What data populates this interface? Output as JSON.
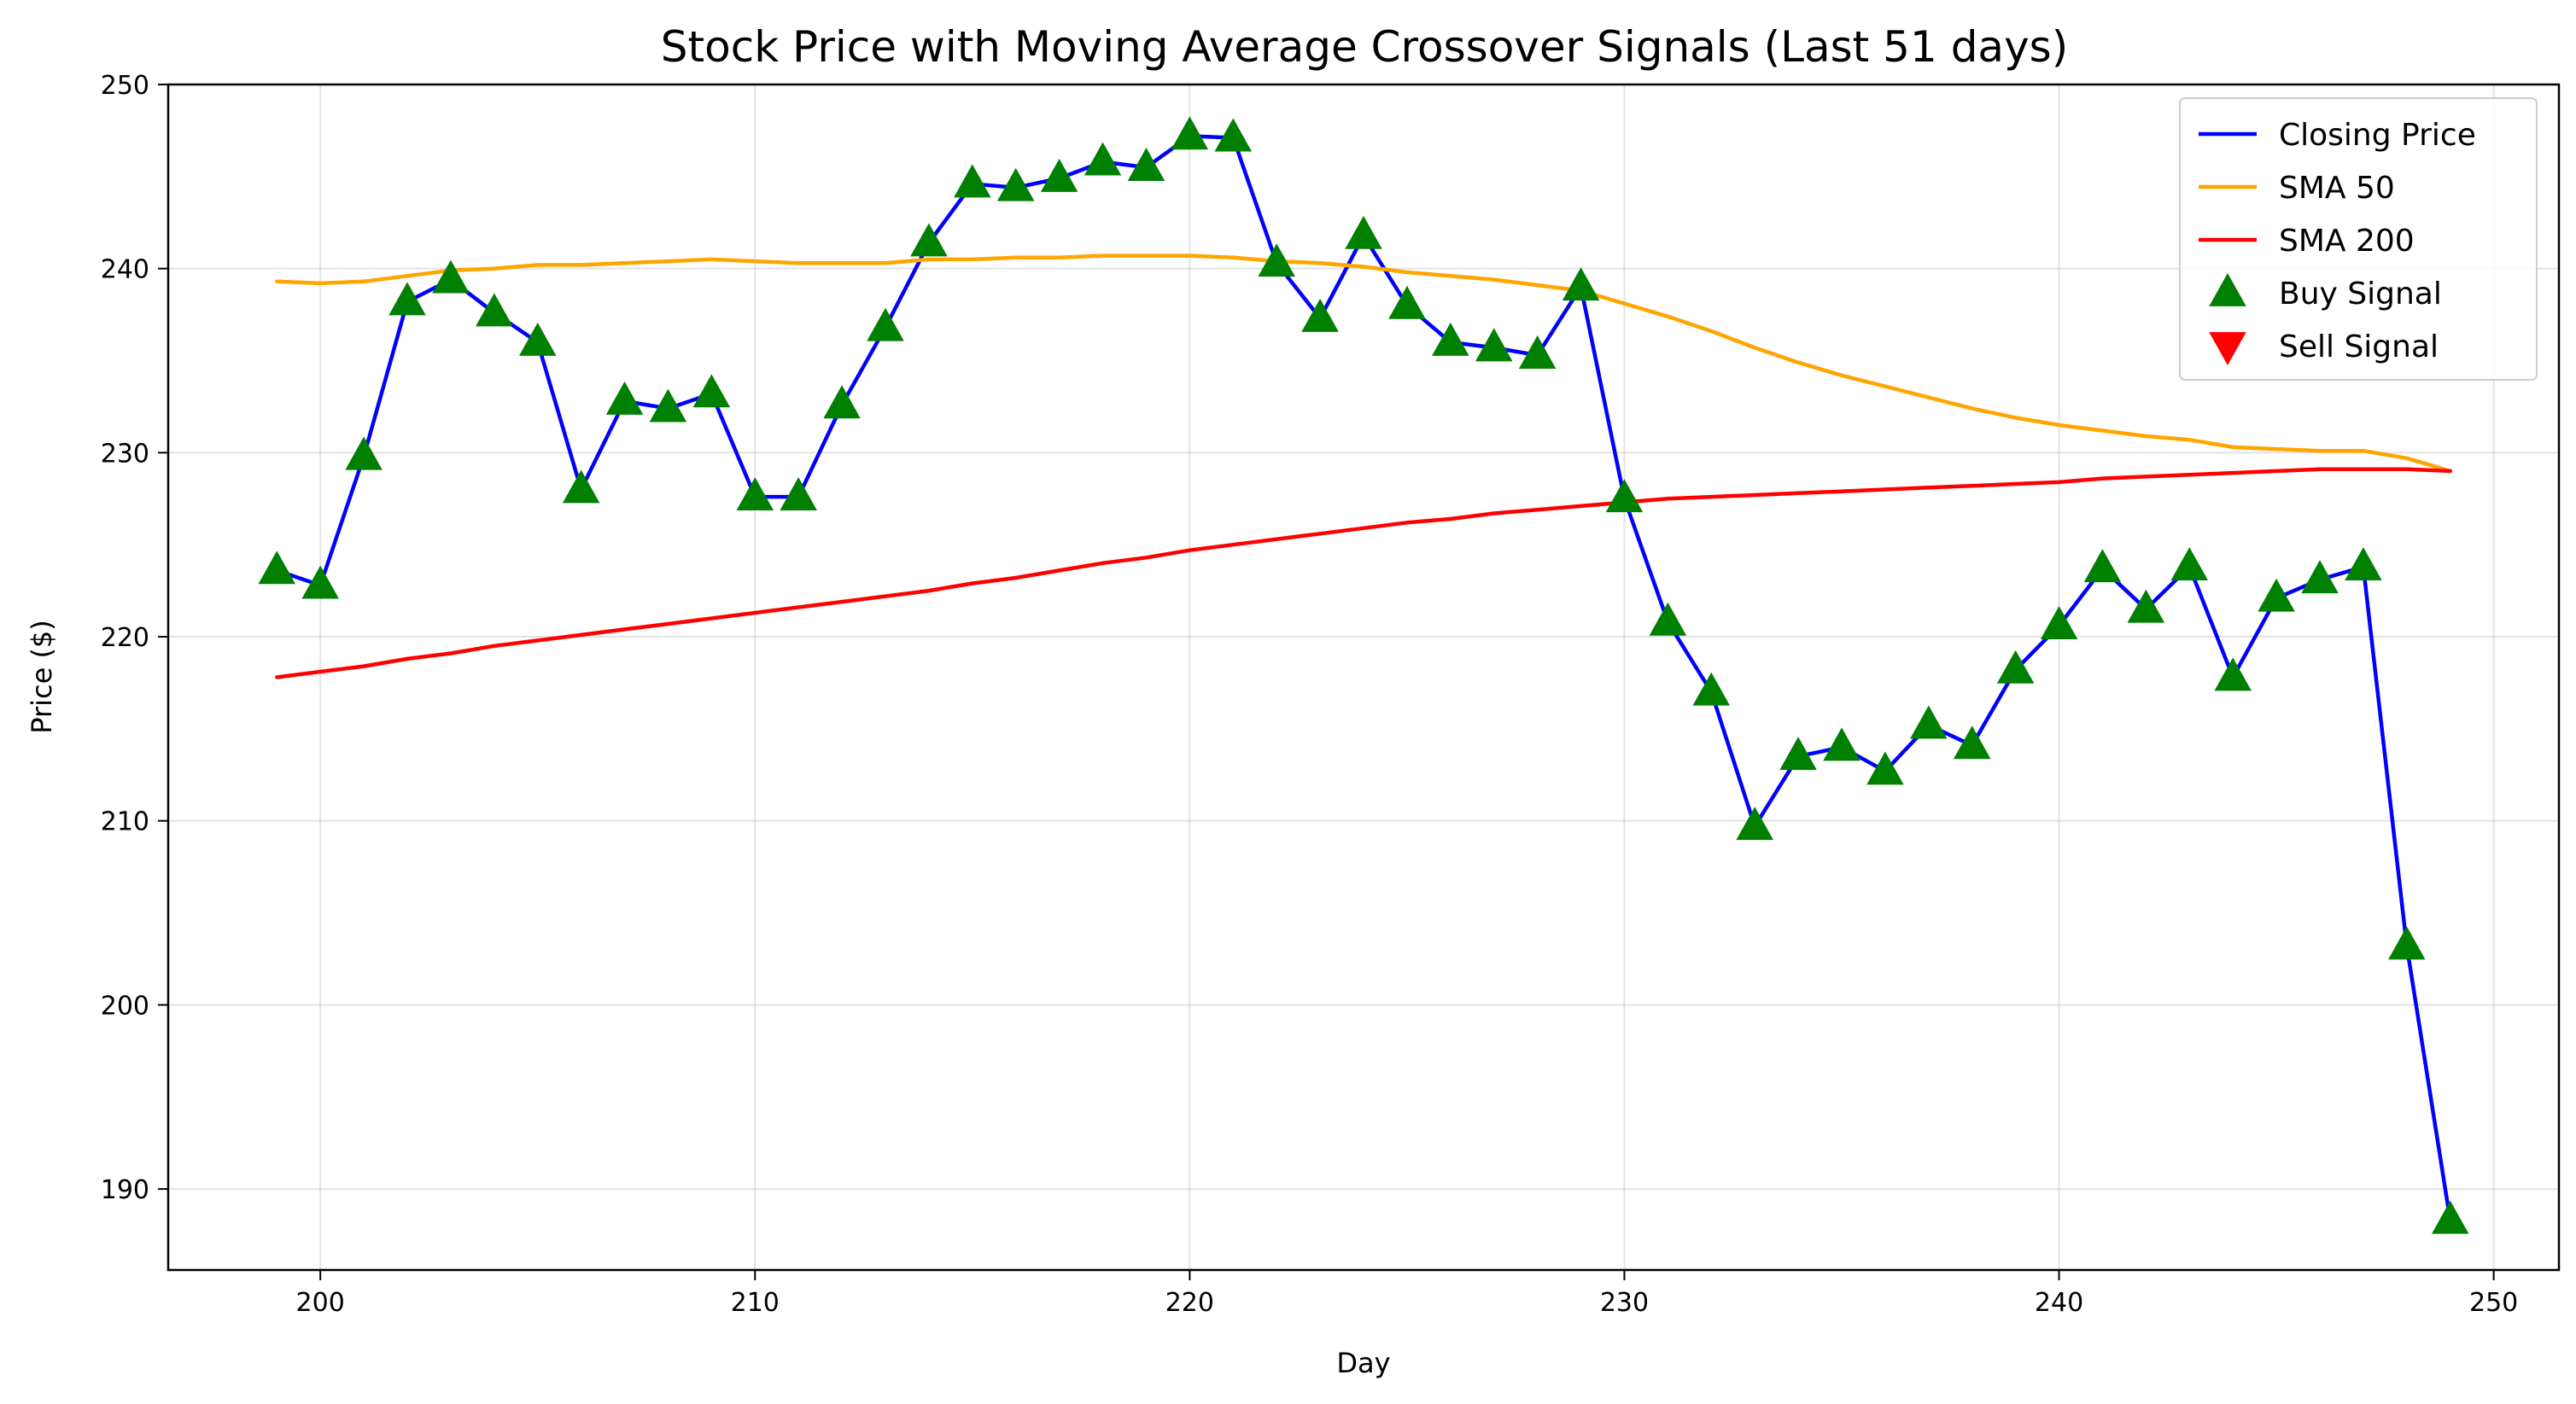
{
  "chart_data": {
    "type": "line",
    "title": "Stock Price with Moving Average Crossover Signals (Last 51 days)",
    "xlabel": "Day",
    "ylabel": "Price ($)",
    "xlim": [
      196.5,
      251.5
    ],
    "ylim": [
      185.6,
      250.0
    ],
    "xticks": [
      200,
      210,
      220,
      230,
      240,
      250
    ],
    "yticks": [
      190,
      200,
      210,
      220,
      230,
      240,
      250
    ],
    "grid": true,
    "legend_position": "top-right",
    "x": [
      199,
      200,
      201,
      202,
      203,
      204,
      205,
      206,
      207,
      208,
      209,
      210,
      211,
      212,
      213,
      214,
      215,
      216,
      217,
      218,
      219,
      220,
      221,
      222,
      223,
      224,
      225,
      226,
      227,
      228,
      229,
      230,
      231,
      232,
      233,
      234,
      235,
      236,
      237,
      238,
      239,
      240,
      241,
      242,
      243,
      244,
      245,
      246,
      247,
      248,
      249
    ],
    "series": [
      {
        "name": "Closing Price",
        "color": "#0000ff",
        "values": [
          223.6,
          222.8,
          229.8,
          238.2,
          239.4,
          237.6,
          236.0,
          228.0,
          232.8,
          232.4,
          233.2,
          227.6,
          227.6,
          232.6,
          236.8,
          241.4,
          244.6,
          244.4,
          244.9,
          245.8,
          245.5,
          247.2,
          247.1,
          240.3,
          237.3,
          241.8,
          238.0,
          236.0,
          235.7,
          235.3,
          239.0,
          227.5,
          220.8,
          217.0,
          209.7,
          213.5,
          214.0,
          212.7,
          215.2,
          214.1,
          218.2,
          220.6,
          223.7,
          221.5,
          223.8,
          217.8,
          222.1,
          223.1,
          223.8,
          203.2,
          188.3
        ]
      },
      {
        "name": "SMA 50",
        "color": "#ffa500",
        "values": [
          239.3,
          239.2,
          239.3,
          239.6,
          239.9,
          240.0,
          240.2,
          240.2,
          240.3,
          240.4,
          240.5,
          240.4,
          240.3,
          240.3,
          240.3,
          240.5,
          240.5,
          240.6,
          240.6,
          240.7,
          240.7,
          240.7,
          240.6,
          240.4,
          240.3,
          240.1,
          239.8,
          239.6,
          239.4,
          239.1,
          238.8,
          238.1,
          237.4,
          236.6,
          235.7,
          234.9,
          234.2,
          233.6,
          233.0,
          232.4,
          231.9,
          231.5,
          231.2,
          230.9,
          230.7,
          230.3,
          230.2,
          230.1,
          230.1,
          229.7,
          229.0
        ]
      },
      {
        "name": "SMA 200",
        "color": "#ff0000",
        "values": [
          217.8,
          218.1,
          218.4,
          218.8,
          219.1,
          219.5,
          219.8,
          220.1,
          220.4,
          220.7,
          221.0,
          221.3,
          221.6,
          221.9,
          222.2,
          222.5,
          222.9,
          223.2,
          223.6,
          224.0,
          224.3,
          224.7,
          225.0,
          225.3,
          225.6,
          225.9,
          226.2,
          226.4,
          226.7,
          226.9,
          227.1,
          227.3,
          227.5,
          227.6,
          227.7,
          227.8,
          227.9,
          228.0,
          228.1,
          228.2,
          228.3,
          228.4,
          228.6,
          228.7,
          228.8,
          228.9,
          229.0,
          229.1,
          229.1,
          229.1,
          229.0
        ]
      }
    ],
    "markers": [
      {
        "name": "Buy Signal",
        "shape": "triangle-up",
        "color": "#008000",
        "x": [
          199,
          200,
          201,
          202,
          203,
          204,
          205,
          206,
          207,
          208,
          209,
          210,
          211,
          212,
          213,
          214,
          215,
          216,
          217,
          218,
          219,
          220,
          221,
          222,
          223,
          224,
          225,
          226,
          227,
          228,
          229,
          230,
          231,
          232,
          233,
          234,
          235,
          236,
          237,
          238,
          239,
          240,
          241,
          242,
          243,
          244,
          245,
          246,
          247,
          248,
          249
        ],
        "y": [
          223.6,
          222.8,
          229.8,
          238.2,
          239.4,
          237.6,
          236.0,
          228.0,
          232.8,
          232.4,
          233.2,
          227.6,
          227.6,
          232.6,
          236.8,
          241.4,
          244.6,
          244.4,
          244.9,
          245.8,
          245.5,
          247.2,
          247.1,
          240.3,
          237.3,
          241.8,
          238.0,
          236.0,
          235.7,
          235.3,
          239.0,
          227.5,
          220.8,
          217.0,
          209.7,
          213.5,
          214.0,
          212.7,
          215.2,
          214.1,
          218.2,
          220.6,
          223.7,
          221.5,
          223.8,
          217.8,
          222.1,
          223.1,
          223.8,
          203.2,
          188.3
        ]
      },
      {
        "name": "Sell Signal",
        "shape": "triangle-down",
        "color": "#ff0000",
        "x": [],
        "y": []
      }
    ]
  }
}
